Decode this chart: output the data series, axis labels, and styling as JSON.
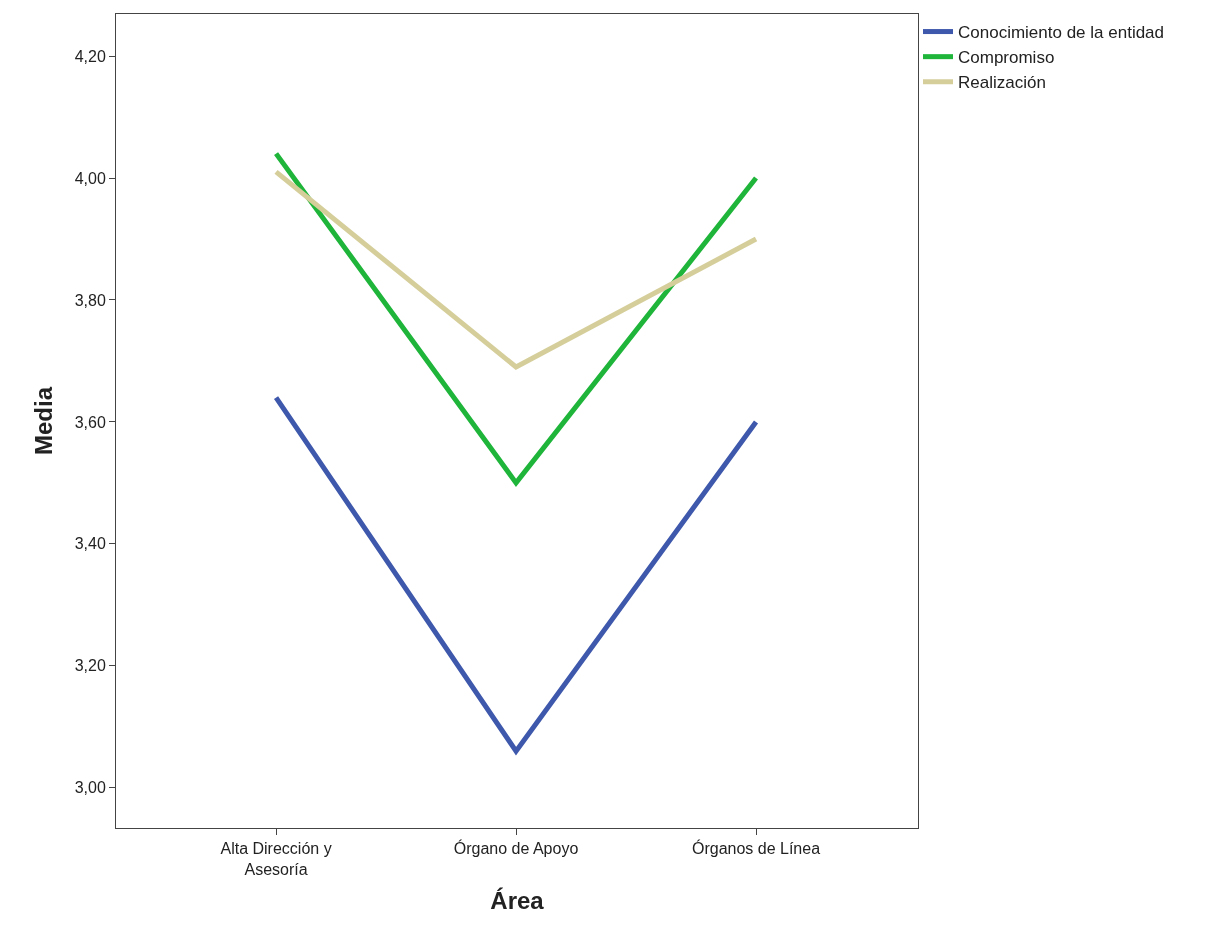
{
  "chart_data": {
    "type": "line",
    "xlabel": "Área",
    "ylabel": "Media",
    "categories": [
      "Alta Dirección y\nAsesoría",
      "Órgano de Apoyo",
      "Órganos de Línea"
    ],
    "series": [
      {
        "name": "Conocimiento de la entidad",
        "color": "#3e58ac",
        "values": [
          3.64,
          3.06,
          3.6
        ]
      },
      {
        "name": "Compromiso",
        "color": "#1eb53a",
        "values": [
          4.04,
          3.5,
          4.0
        ]
      },
      {
        "name": "Realización",
        "color": "#d5ce9b",
        "values": [
          4.01,
          3.69,
          3.9
        ]
      }
    ],
    "ylim": [
      2.934,
      4.269
    ],
    "yticks": [
      {
        "value": 3.0,
        "label": "3,00"
      },
      {
        "value": 3.2,
        "label": "3,20"
      },
      {
        "value": 3.4,
        "label": "3,40"
      },
      {
        "value": 3.6,
        "label": "3,60"
      },
      {
        "value": 3.8,
        "label": "3,80"
      },
      {
        "value": 4.0,
        "label": "4,00"
      },
      {
        "value": 4.2,
        "label": "4,20"
      }
    ],
    "legend": "top right",
    "marker": "none",
    "line_style": "solid"
  }
}
